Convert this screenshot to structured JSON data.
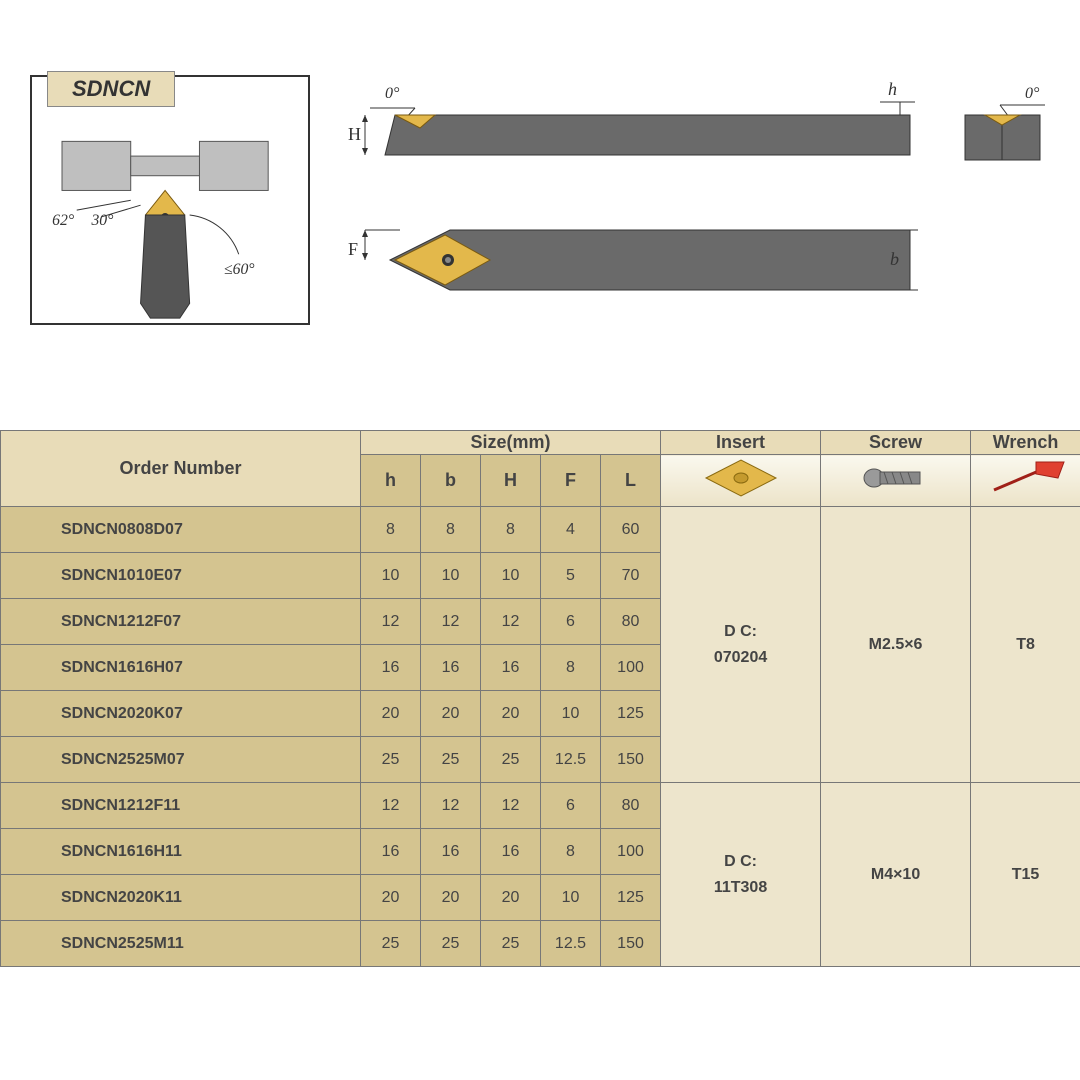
{
  "colors": {
    "header_bg": "#e8dcb8",
    "subheader_bg": "#d4c490",
    "row_bg": "#d4c490",
    "merged_bg": "#ede5cc",
    "icon_bg_grad_top": "#faf8ee",
    "icon_bg_grad_bottom": "#ece3c8",
    "tool_body": "#6a6a6a",
    "tool_body_light": "#7a7a7a",
    "insert_gold": "#e3b84b",
    "insert_gold_dark": "#c49a2e",
    "border": "#777777",
    "text": "#444444",
    "wrench_red": "#e04030",
    "screw_grey": "#888888"
  },
  "diagram": {
    "product_code": "SDNCN",
    "angles": {
      "zero": "0°",
      "sixty_two": "62°",
      "thirty": "30°",
      "lead_angle": "≤60°"
    },
    "dims": {
      "H": "H",
      "F": "F",
      "h": "h",
      "b": "b"
    }
  },
  "table": {
    "headers": {
      "order": "Order Number",
      "size": "Size(mm)",
      "insert": "Insert",
      "screw": "Screw",
      "wrench": "Wrench"
    },
    "size_cols": [
      "h",
      "b",
      "H",
      "F",
      "L"
    ],
    "col_widths": {
      "order": 360,
      "size_each": 60,
      "insert": 160,
      "screw": 150,
      "wrench": 110
    },
    "groups": [
      {
        "insert": "D C:\n070204",
        "screw": "M2.5×6",
        "wrench": "T8",
        "rows": [
          {
            "order": "SDNCN0808D07",
            "h": "8",
            "b": "8",
            "H": "8",
            "F": "4",
            "L": "60"
          },
          {
            "order": "SDNCN1010E07",
            "h": "10",
            "b": "10",
            "H": "10",
            "F": "5",
            "L": "70"
          },
          {
            "order": "SDNCN1212F07",
            "h": "12",
            "b": "12",
            "H": "12",
            "F": "6",
            "L": "80"
          },
          {
            "order": "SDNCN1616H07",
            "h": "16",
            "b": "16",
            "H": "16",
            "F": "8",
            "L": "100"
          },
          {
            "order": "SDNCN2020K07",
            "h": "20",
            "b": "20",
            "H": "20",
            "F": "10",
            "L": "125"
          },
          {
            "order": "SDNCN2525M07",
            "h": "25",
            "b": "25",
            "H": "25",
            "F": "12.5",
            "L": "150"
          }
        ]
      },
      {
        "insert": "D C:\n11T308",
        "screw": "M4×10",
        "wrench": "T15",
        "rows": [
          {
            "order": "SDNCN1212F11",
            "h": "12",
            "b": "12",
            "H": "12",
            "F": "6",
            "L": "80"
          },
          {
            "order": "SDNCN1616H11",
            "h": "16",
            "b": "16",
            "H": "16",
            "F": "8",
            "L": "100"
          },
          {
            "order": "SDNCN2020K11",
            "h": "20",
            "b": "20",
            "H": "20",
            "F": "10",
            "L": "125"
          },
          {
            "order": "SDNCN2525M11",
            "h": "25",
            "b": "25",
            "H": "25",
            "F": "12.5",
            "L": "150"
          }
        ]
      }
    ]
  }
}
